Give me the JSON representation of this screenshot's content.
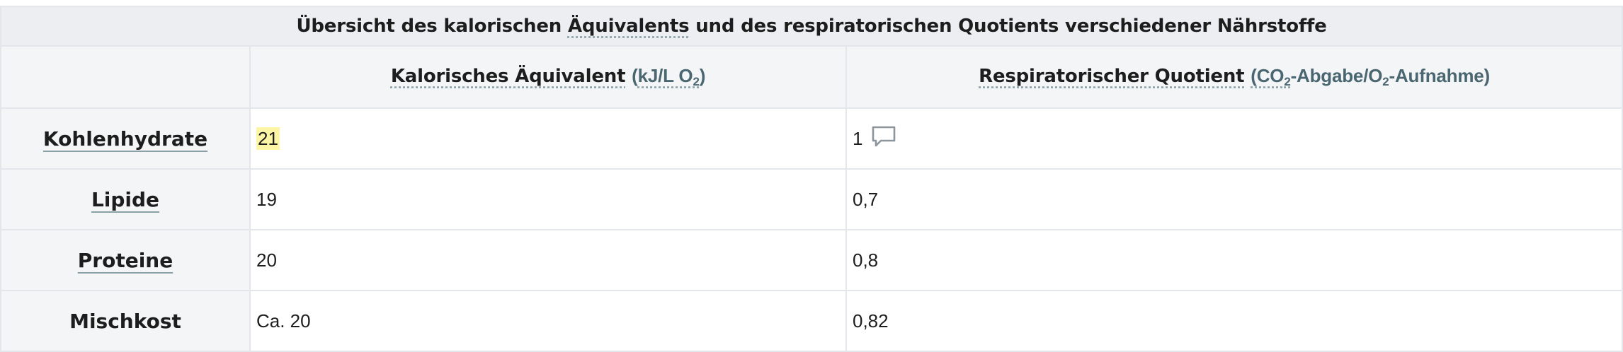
{
  "table": {
    "caption_parts": [
      "Übersicht des kalorischen ",
      "Äquivalents",
      " und des respiratorischen Quotients verschiedener Nährstoffe"
    ],
    "header": {
      "col1_label": "Kalorisches Äquivalent",
      "col1_unit_open": "(",
      "col1_unit_main": "kJ/L O",
      "col1_unit_sub": "2",
      "col1_unit_close": ")",
      "col2_label": "Respiratorischer Quotient",
      "col2_unit_a": "(CO",
      "col2_unit_sub1": "2",
      "col2_unit_b": "-Abgabe/O",
      "col2_unit_sub2": "2",
      "col2_unit_c": "-Aufnahme)"
    },
    "rows": [
      {
        "label": "Kohlenhydrate",
        "kalorisch": "21",
        "rq": "1"
      },
      {
        "label": "Lipide",
        "kalorisch": "19",
        "rq": "0,7"
      },
      {
        "label": "Proteine",
        "kalorisch": "20",
        "rq": "0,8"
      },
      {
        "label": "Mischkost",
        "kalorisch": "Ca. 20",
        "rq": "0,82"
      }
    ]
  },
  "icons": {
    "comment": "comment-icon"
  },
  "colors": {
    "highlight": "#fdf5a6",
    "header_bg": "#f4f5f7",
    "title_bg": "#eceef1",
    "unit_text": "#4a6670",
    "border": "#e3e6ea"
  }
}
